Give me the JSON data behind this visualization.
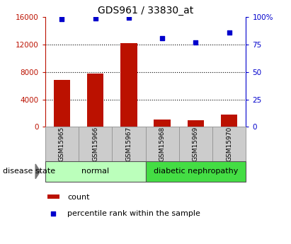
{
  "title": "GDS961 / 33830_at",
  "samples": [
    "GSM15965",
    "GSM15966",
    "GSM15967",
    "GSM15968",
    "GSM15969",
    "GSM15970"
  ],
  "bar_values": [
    6800,
    7800,
    12200,
    1100,
    950,
    1800
  ],
  "scatter_values_pct": [
    98,
    99,
    99.5,
    81,
    77,
    86
  ],
  "bar_color": "#bb1100",
  "scatter_color": "#0000cc",
  "ylim_left": [
    0,
    16000
  ],
  "ylim_right": [
    0,
    100
  ],
  "left_yticks": [
    0,
    4000,
    8000,
    12000,
    16000
  ],
  "right_yticks": [
    0,
    25,
    50,
    75,
    100
  ],
  "right_yticklabels": [
    "0",
    "25",
    "50",
    "75",
    "100%"
  ],
  "groups": [
    {
      "label": "normal",
      "count": 3,
      "color": "#bbffbb"
    },
    {
      "label": "diabetic nephropathy",
      "count": 3,
      "color": "#44dd44"
    }
  ],
  "disease_state_label": "disease state",
  "legend_bar_label": "count",
  "legend_scatter_label": "percentile rank within the sample",
  "tick_bg_color": "#cccccc",
  "grid_color": "black",
  "grid_linestyle": "dotted",
  "grid_linewidth": 0.8,
  "bar_width": 0.5
}
